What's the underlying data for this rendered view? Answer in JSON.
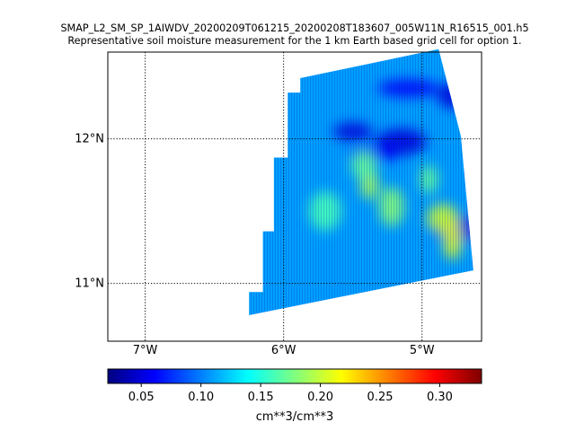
{
  "chart_data": {
    "type": "heatmap",
    "title": "SMAP_L2_SM_SP_1AIWDV_20200209T061215_20200208T183607_005W11N_R16515_001.h5",
    "subtitle": "Representative soil moisture measurement for the 1 km Earth based grid cell for option 1.",
    "map_extent": {
      "lon": [
        -7.27,
        -4.57
      ],
      "lat": [
        10.6,
        12.6
      ]
    },
    "x_ticks": [
      {
        "value": -7,
        "label": "7°W"
      },
      {
        "value": -6,
        "label": "6°W"
      },
      {
        "value": -5,
        "label": "5°W"
      }
    ],
    "y_ticks": [
      {
        "value": 11,
        "label": "11°N"
      },
      {
        "value": 12,
        "label": "12°N"
      }
    ],
    "grid": "dotted",
    "swath_outline": [
      [
        -6.25,
        10.78
      ],
      [
        -4.63,
        11.09
      ],
      [
        -4.72,
        12.02
      ],
      [
        -4.88,
        12.62
      ],
      [
        -5.88,
        12.42
      ],
      [
        -5.88,
        12.32
      ],
      [
        -5.97,
        12.32
      ],
      [
        -5.97,
        11.87
      ],
      [
        -6.07,
        11.87
      ],
      [
        -6.07,
        11.36
      ],
      [
        -6.15,
        11.36
      ],
      [
        -6.15,
        10.94
      ],
      [
        -6.25,
        10.94
      ]
    ],
    "wet_regions": [
      {
        "lon": -5.38,
        "lat": 11.68,
        "value": 0.19
      },
      {
        "lon": -5.22,
        "lat": 11.53,
        "value": 0.18
      },
      {
        "lon": -4.85,
        "lat": 11.45,
        "value": 0.2
      },
      {
        "lon": -4.78,
        "lat": 11.3,
        "value": 0.21
      },
      {
        "lon": -5.42,
        "lat": 11.82,
        "value": 0.17
      },
      {
        "lon": -5.7,
        "lat": 11.5,
        "value": 0.16
      },
      {
        "lon": -4.95,
        "lat": 11.72,
        "value": 0.17
      }
    ],
    "dry_regions": [
      {
        "lon": -5.5,
        "lat": 12.05,
        "value": 0.05
      },
      {
        "lon": -5.15,
        "lat": 11.98,
        "value": 0.05
      },
      {
        "lon": -5.1,
        "lat": 12.35,
        "value": 0.06
      },
      {
        "lon": -4.75,
        "lat": 12.3,
        "value": 0.05
      },
      {
        "lon": -5.35,
        "lat": 11.9,
        "value": 0.06
      },
      {
        "lon": -4.72,
        "lat": 11.38,
        "value": 0.05
      }
    ],
    "colorbar": {
      "colormap": "jet",
      "range": [
        0.022,
        0.335
      ],
      "ticks": [
        0.05,
        0.1,
        0.15,
        0.2,
        0.25,
        0.3
      ],
      "tick_labels": [
        "0.05",
        "0.10",
        "0.15",
        "0.20",
        "0.25",
        "0.30"
      ],
      "label": "cm**3/cm**3"
    }
  }
}
